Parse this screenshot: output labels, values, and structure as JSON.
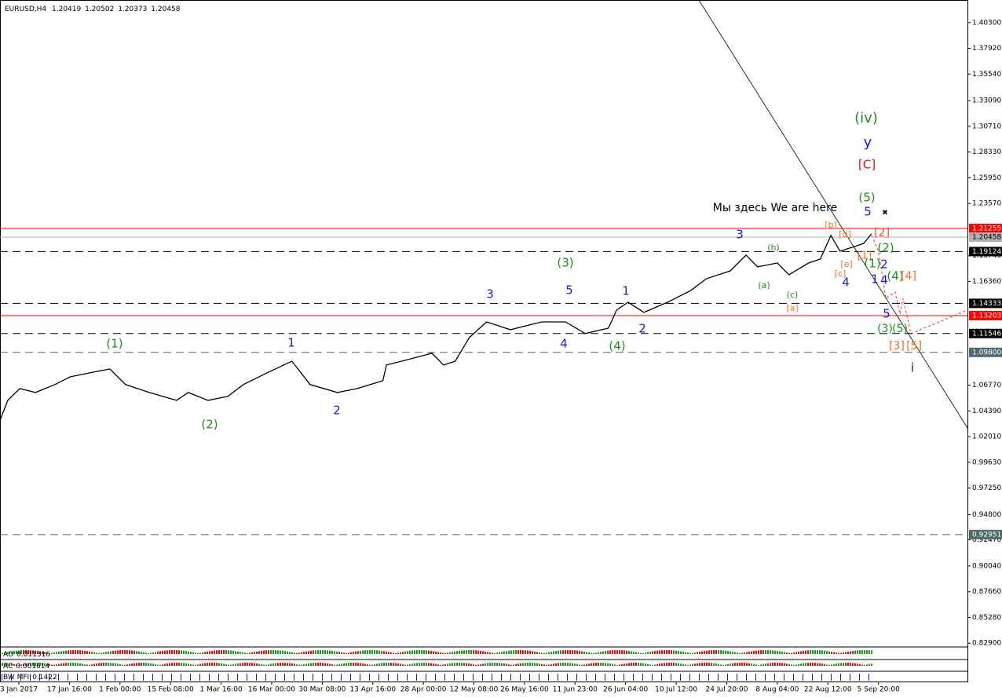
{
  "chart_data": {
    "type": "line",
    "symbol": "EURUSD,H4",
    "ohlc": [
      1.20419,
      1.20502,
      1.20373,
      1.20458
    ],
    "grid": false,
    "xlim": [
      -0.373,
      18.76
    ],
    "ylim": [
      0.827,
      1.421
    ],
    "xticks": [
      {
        "value": 0,
        "label": "3 Jan 2017"
      },
      {
        "value": 1,
        "label": "17 Jan 16:00"
      },
      {
        "value": 2,
        "label": "1 Feb 00:00"
      },
      {
        "value": 3,
        "label": "15 Feb 08:00"
      },
      {
        "value": 4,
        "label": "1 Mar 16:00"
      },
      {
        "value": 5,
        "label": "16 Mar 00:00"
      },
      {
        "value": 6,
        "label": "30 Mar 08:00"
      },
      {
        "value": 7,
        "label": "13 Apr 16:00"
      },
      {
        "value": 8,
        "label": "28 Apr 00:00"
      },
      {
        "value": 9,
        "label": "12 May 08:00"
      },
      {
        "value": 10,
        "label": "26 May 16:00"
      },
      {
        "value": 11,
        "label": "11 Jun 23:00"
      },
      {
        "value": 12,
        "label": "26 Jun 04:00"
      },
      {
        "value": 13,
        "label": "10 Jul 12:00"
      },
      {
        "value": 14,
        "label": "24 Jul 20:00"
      },
      {
        "value": 15,
        "label": "8 Aug 04:00"
      },
      {
        "value": 16,
        "label": "22 Aug 12:00"
      },
      {
        "value": 17,
        "label": "5 Sep 20:00"
      }
    ],
    "yticks": [
      {
        "value": 1.403,
        "label": "1.40300"
      },
      {
        "value": 1.3792,
        "label": "1.37920"
      },
      {
        "value": 1.3554,
        "label": "1.35540"
      },
      {
        "value": 1.3309,
        "label": "1.33090"
      },
      {
        "value": 1.3071,
        "label": "1.30710"
      },
      {
        "value": 1.2833,
        "label": "1.28330"
      },
      {
        "value": 1.2595,
        "label": "1.25950"
      },
      {
        "value": 1.2357,
        "label": "1.23570"
      },
      {
        "value": 1.1874,
        "label": "1.18740"
      },
      {
        "value": 1.1636,
        "label": "1.16360"
      },
      {
        "value": 1.0677,
        "label": "1.06770"
      },
      {
        "value": 1.0439,
        "label": "1.04390"
      },
      {
        "value": 1.0201,
        "label": "1.02010"
      },
      {
        "value": 0.9963,
        "label": "0.99630"
      },
      {
        "value": 0.9725,
        "label": "0.97250"
      },
      {
        "value": 0.948,
        "label": "0.94800"
      },
      {
        "value": 0.9247,
        "label": "0.92470"
      },
      {
        "value": 0.9004,
        "label": "0.90040"
      },
      {
        "value": 0.8766,
        "label": "0.87660"
      },
      {
        "value": 0.8528,
        "label": "0.85280"
      },
      {
        "value": 0.829,
        "label": "0.82900"
      }
    ],
    "series": [
      {
        "name": "EURUSD",
        "color": "#000000",
        "x": [
          -0.37,
          -0.22,
          0.02,
          0.33,
          0.71,
          1.02,
          1.41,
          1.8,
          2.11,
          2.58,
          3.12,
          3.35,
          3.74,
          4.13,
          4.44,
          4.91,
          5.4,
          5.76,
          6.3,
          6.69,
          7.2,
          7.27,
          7.7,
          8.17,
          8.4,
          8.63,
          8.91,
          9.25,
          9.72,
          10.34,
          10.81,
          11.2,
          11.66,
          11.82,
          12.05,
          12.36,
          12.83,
          13.29,
          13.6,
          14.07,
          14.38,
          14.61,
          15.0,
          15.23,
          15.62,
          15.85,
          16.06,
          16.24,
          16.48,
          16.71,
          16.86
        ],
        "values": [
          1.0355,
          1.0536,
          1.0645,
          1.0609,
          1.0682,
          1.0754,
          1.0791,
          1.0827,
          1.0682,
          1.0609,
          1.0536,
          1.0609,
          1.0536,
          1.0573,
          1.0682,
          1.0791,
          1.0899,
          1.0682,
          1.0609,
          1.0645,
          1.0718,
          1.0863,
          1.0914,
          1.0972,
          1.0863,
          1.0899,
          1.1117,
          1.1262,
          1.119,
          1.1262,
          1.1262,
          1.1154,
          1.1204,
          1.1371,
          1.1444,
          1.135,
          1.1444,
          1.1553,
          1.1662,
          1.1734,
          1.188,
          1.1771,
          1.1807,
          1.1698,
          1.1807,
          1.1843,
          1.2061,
          1.1916,
          1.1952,
          1.1988,
          1.2076
        ]
      }
    ],
    "levels": [
      {
        "value": 1.21255,
        "color": "#ff0000",
        "style": "solid"
      },
      {
        "value": 1.20458,
        "color": "#b0b0b0",
        "style": "solid"
      },
      {
        "value": 1.19124,
        "color": "#000000",
        "style": "dashed"
      },
      {
        "value": 1.14333,
        "color": "#000000",
        "style": "dashed"
      },
      {
        "value": 1.13203,
        "color": "#ff0000",
        "style": "solid"
      },
      {
        "value": 1.11546,
        "color": "#000000",
        "style": "dashed"
      },
      {
        "value": 1.098,
        "label": "1.09800",
        "color": "#4f6b6b",
        "style": "dashed"
      },
      {
        "value": 0.92951,
        "color": "#4f6b6b",
        "style": "dashed"
      }
    ],
    "annotations": [
      {
        "text": "(iv)",
        "color": "#1e8c1e"
      },
      {
        "text": "y",
        "color": "#1a1adc"
      },
      {
        "text": "[C]",
        "color": "#e01010"
      },
      {
        "text": "(5)",
        "color": "#1e8c1e"
      },
      {
        "text": "5",
        "color": "#1a1adc"
      },
      {
        "text": "Мы здесь We are here",
        "color": "#000000"
      },
      {
        "text": "3",
        "color": "#1a1adc"
      },
      {
        "text": "(h)",
        "color": "#1e8c1e"
      },
      {
        "text": "(3)",
        "color": "#1e8c1e"
      },
      {
        "text": "3",
        "color": "#1a1adc"
      },
      {
        "text": "5",
        "color": "#1a1adc"
      },
      {
        "text": "1",
        "color": "#1a1adc"
      },
      {
        "text": "(a)",
        "color": "#1e8c1e"
      },
      {
        "text": "(c)",
        "color": "#1e8c1e"
      },
      {
        "text": "[a]",
        "color": "#f07020"
      },
      {
        "text": "2",
        "color": "#1a1adc"
      },
      {
        "text": "4",
        "color": "#1a1adc"
      },
      {
        "text": "(4)",
        "color": "#1e8c1e"
      },
      {
        "text": "(1)",
        "color": "#1e8c1e"
      },
      {
        "text": "1",
        "color": "#1a1adc"
      },
      {
        "text": "(2)",
        "color": "#1e8c1e"
      },
      {
        "text": "2",
        "color": "#1a1adc"
      },
      {
        "text": "[b]",
        "color": "#f07020"
      },
      {
        "text": "[d]",
        "color": "#f07020"
      },
      {
        "text": "[2]",
        "color": "#f05020"
      },
      {
        "text": "(2)",
        "color": "#1e8c1e"
      },
      {
        "text": "[1]",
        "color": "#f07020"
      },
      {
        "text": "[e]",
        "color": "#f07020"
      },
      {
        "text": "[c]",
        "color": "#f07020"
      },
      {
        "text": "(1)",
        "color": "#1e8c1e"
      },
      {
        "text": "2",
        "color": "#1a1adc"
      },
      {
        "text": "4",
        "color": "#1a1adc"
      },
      {
        "text": "1",
        "color": "#1a1adc"
      },
      {
        "text": "4",
        "color": "#1a1adc"
      },
      {
        "text": "(4)",
        "color": "#1e8c1e"
      },
      {
        "text": "[4]",
        "color": "#f07020"
      },
      {
        "text": "5",
        "color": "#1a1adc"
      },
      {
        "text": "(3)",
        "color": "#1e8c1e"
      },
      {
        "text": "(5)",
        "color": "#1e8c1e"
      },
      {
        "text": "[3]",
        "color": "#f07020"
      },
      {
        "text": "[5]",
        "color": "#f07020"
      },
      {
        "text": "i",
        "color": "#1a1adc"
      }
    ],
    "indicators": [
      {
        "name": "AO",
        "value": 0.011316
      },
      {
        "name": "AC",
        "value": 0.001614
      },
      {
        "name": "BW MFI",
        "value": 0.1422
      }
    ]
  }
}
